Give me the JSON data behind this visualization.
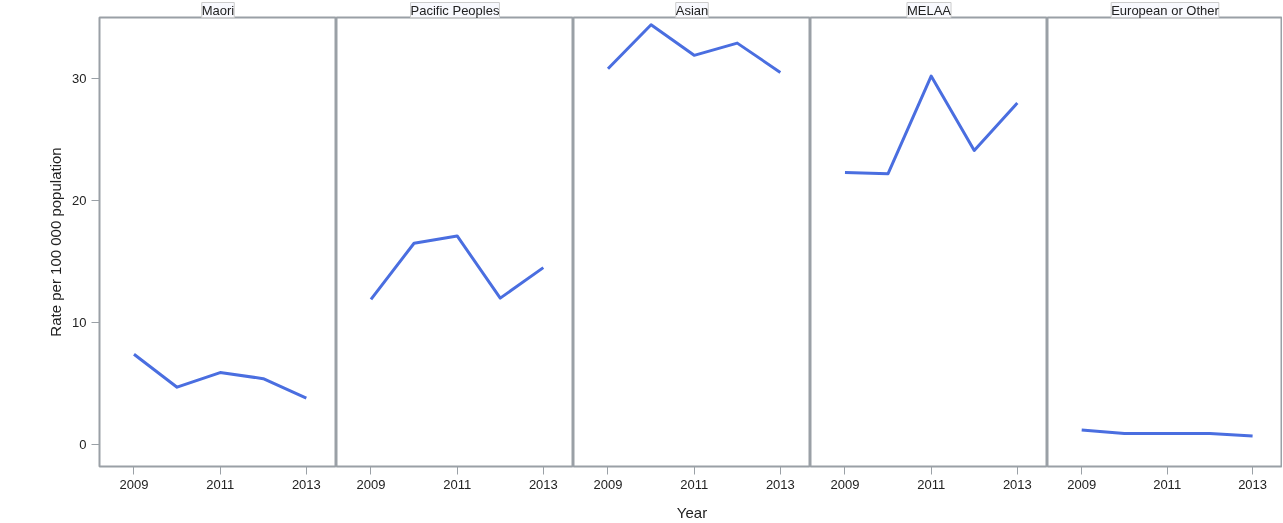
{
  "chart_data": [
    {
      "type": "line",
      "title": "Maori",
      "ylabel": "Rate per 100 000 population",
      "x": [
        2009,
        2010,
        2011,
        2012,
        2013
      ],
      "series": [
        {
          "color": "#4a6ee0",
          "values": [
            7.4,
            4.7,
            5.9,
            5.4,
            3.8
          ]
        }
      ],
      "xlim": [
        2008.2,
        2013.7
      ],
      "xticks": [
        2009,
        2011,
        2013
      ],
      "ylim": [
        -1.8,
        35
      ],
      "yticks": [
        0,
        10,
        20,
        30
      ]
    },
    {
      "type": "line",
      "title": "Pacific Peoples",
      "x": [
        2009,
        2010,
        2011,
        2012,
        2013
      ],
      "series": [
        {
          "color": "#4a6ee0",
          "values": [
            11.9,
            16.5,
            17.1,
            12.0,
            14.5
          ]
        }
      ],
      "xlim": [
        2008.2,
        2013.7
      ],
      "xticks": [
        2009,
        2011,
        2013
      ],
      "ylim": [
        -1.8,
        35
      ],
      "yticks": [
        0,
        10,
        20,
        30
      ],
      "tick_labels": "x"
    },
    {
      "type": "line",
      "title": "Asian",
      "xlabel": "Year",
      "x": [
        2009,
        2010,
        2011,
        2012,
        2013
      ],
      "series": [
        {
          "color": "#4a6ee0",
          "values": [
            30.8,
            34.4,
            31.9,
            32.9,
            30.5
          ]
        }
      ],
      "xlim": [
        2008.2,
        2013.7
      ],
      "xticks": [
        2009,
        2011,
        2013
      ],
      "ylim": [
        -1.8,
        35
      ],
      "yticks": [
        0,
        10,
        20,
        30
      ],
      "tick_labels": "x"
    },
    {
      "type": "line",
      "title": "MELAA",
      "x": [
        2009,
        2010,
        2011,
        2012,
        2013
      ],
      "series": [
        {
          "color": "#4a6ee0",
          "values": [
            22.3,
            22.2,
            30.2,
            24.1,
            28.0
          ]
        }
      ],
      "xlim": [
        2008.2,
        2013.7
      ],
      "xticks": [
        2009,
        2011,
        2013
      ],
      "ylim": [
        -1.8,
        35
      ],
      "yticks": [
        0,
        10,
        20,
        30
      ],
      "tick_labels": "x"
    },
    {
      "type": "line",
      "title": "European or Other",
      "x": [
        2009,
        2010,
        2011,
        2012,
        2013
      ],
      "series": [
        {
          "color": "#4a6ee0",
          "values": [
            1.2,
            0.9,
            0.9,
            0.9,
            0.7
          ]
        }
      ],
      "xlim": [
        2008.2,
        2013.7
      ],
      "xticks": [
        2009,
        2011,
        2013
      ],
      "ylim": [
        -1.8,
        35
      ],
      "yticks": [
        0,
        10,
        20,
        30
      ],
      "tick_labels": "x"
    }
  ]
}
